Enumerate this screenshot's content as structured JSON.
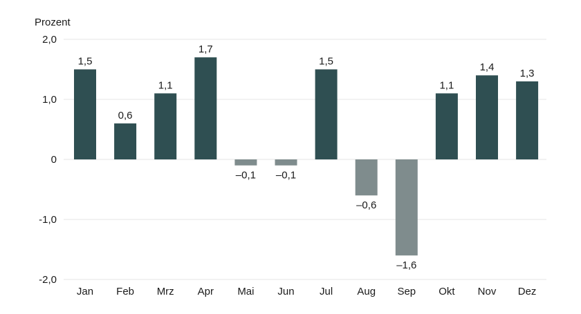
{
  "chart_data": {
    "type": "bar",
    "ylabel": "Prozent",
    "ylim": [
      -2.0,
      2.0
    ],
    "yticks": [
      {
        "value": 2.0,
        "label": "2,0"
      },
      {
        "value": 1.0,
        "label": "1,0"
      },
      {
        "value": 0,
        "label": "0"
      },
      {
        "value": -1.0,
        "label": "-1,0"
      },
      {
        "value": -2.0,
        "label": "-2,0"
      }
    ],
    "categories": [
      "Jan",
      "Feb",
      "Mrz",
      "Apr",
      "Mai",
      "Jun",
      "Jul",
      "Aug",
      "Sep",
      "Okt",
      "Nov",
      "Dez"
    ],
    "values": [
      1.5,
      0.6,
      1.1,
      1.7,
      -0.1,
      -0.1,
      1.5,
      -0.6,
      -1.6,
      1.1,
      1.4,
      1.3
    ],
    "value_labels": [
      "1,5",
      "0,6",
      "1,1",
      "1,7",
      "–0,1",
      "–0,1",
      "1,5",
      "–0,6",
      "–1,6",
      "1,1",
      "1,4",
      "1,3"
    ],
    "grid": true,
    "colors": {
      "positive": "#2f4f52",
      "negative": "#7f8c8d"
    }
  }
}
